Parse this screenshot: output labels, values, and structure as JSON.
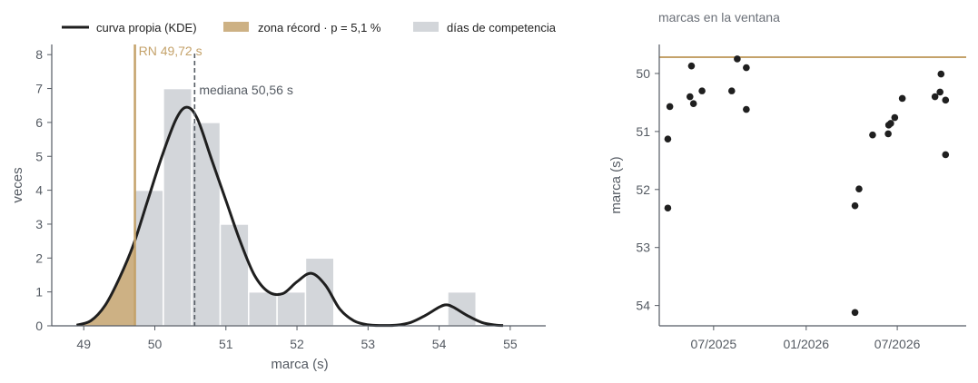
{
  "colors": {
    "kde": "#1f1f1f",
    "record": "#c4a26a",
    "record_fill": "#cdb184",
    "bars": "#d3d6da",
    "median": "#555b63",
    "points": "#1f1f1f",
    "axis": "#555b63"
  },
  "chart_data": [
    {
      "type": "bar",
      "subtype": "histogram-with-kde",
      "title": "",
      "xlabel": "marca (s)",
      "ylabel": "veces",
      "xlim": [
        48.55,
        55.5
      ],
      "ylim": [
        0,
        8.3
      ],
      "xticks": [
        49,
        50,
        51,
        52,
        53,
        54,
        55
      ],
      "yticks": [
        0,
        1,
        2,
        3,
        4,
        5,
        6,
        7,
        8
      ],
      "bin_edges": [
        49.72,
        50.12,
        50.52,
        50.92,
        51.32,
        51.72,
        52.12,
        52.52,
        52.92,
        53.32,
        53.72,
        54.12,
        54.52
      ],
      "bin_counts": [
        4,
        7,
        6,
        3,
        1,
        1,
        2,
        0,
        0,
        0,
        0,
        1
      ],
      "kde": {
        "name": "curva propia (KDE)",
        "x": [
          48.9,
          49.1,
          49.3,
          49.5,
          49.7,
          49.9,
          50.1,
          50.3,
          50.45,
          50.6,
          50.8,
          51.0,
          51.2,
          51.4,
          51.6,
          51.8,
          52.0,
          52.2,
          52.4,
          52.6,
          52.8,
          53.0,
          53.2,
          53.4,
          53.6,
          53.8,
          54.0,
          54.1,
          54.2,
          54.4,
          54.6,
          54.8,
          54.9
        ],
        "y": [
          0.02,
          0.15,
          0.6,
          1.4,
          2.4,
          3.7,
          5.0,
          6.1,
          6.45,
          6.1,
          4.9,
          3.7,
          2.5,
          1.5,
          1.0,
          0.95,
          1.3,
          1.55,
          1.2,
          0.5,
          0.15,
          0.03,
          0.01,
          0.02,
          0.1,
          0.3,
          0.55,
          0.62,
          0.55,
          0.3,
          0.1,
          0.02,
          0.01
        ]
      },
      "record": {
        "value": 49.72,
        "label": "RN 49,72 s"
      },
      "median": {
        "value": 50.56,
        "label": "mediana 50,56 s"
      },
      "zone_label": "zona récord · p = 5,1 %",
      "bars_label": "días de competencia",
      "legend_position": "top"
    },
    {
      "type": "scatter",
      "title": "marcas en la ventana",
      "xlabel": "",
      "ylabel": "marca (s)",
      "y_inverted": true,
      "ylim": [
        49.5,
        54.35
      ],
      "yticks": [
        50,
        51,
        52,
        53,
        54
      ],
      "xlim": [
        "2025-03-15",
        "2026-11-15"
      ],
      "xticks": [
        "2025-07-01",
        "2026-01-01",
        "2026-07-01"
      ],
      "xtick_labels": [
        "07/2025",
        "01/2026",
        "07/2026"
      ],
      "record_line": 49.72,
      "points": [
        {
          "x": "2025-04-01",
          "y": 51.13
        },
        {
          "x": "2025-04-01",
          "y": 52.32
        },
        {
          "x": "2025-04-05",
          "y": 50.57
        },
        {
          "x": "2025-05-15",
          "y": 50.4
        },
        {
          "x": "2025-05-18",
          "y": 49.87
        },
        {
          "x": "2025-05-22",
          "y": 50.52
        },
        {
          "x": "2025-06-08",
          "y": 50.3
        },
        {
          "x": "2025-08-06",
          "y": 50.3
        },
        {
          "x": "2025-08-17",
          "y": 49.75
        },
        {
          "x": "2025-09-04",
          "y": 49.9
        },
        {
          "x": "2025-09-04",
          "y": 50.62
        },
        {
          "x": "2026-04-08",
          "y": 52.28
        },
        {
          "x": "2026-04-08",
          "y": 54.12
        },
        {
          "x": "2026-04-16",
          "y": 51.99
        },
        {
          "x": "2026-05-13",
          "y": 51.06
        },
        {
          "x": "2026-06-13",
          "y": 51.04
        },
        {
          "x": "2026-06-14",
          "y": 50.89
        },
        {
          "x": "2026-06-18",
          "y": 50.86
        },
        {
          "x": "2026-06-26",
          "y": 50.76
        },
        {
          "x": "2026-07-11",
          "y": 50.43
        },
        {
          "x": "2026-09-14",
          "y": 50.4
        },
        {
          "x": "2026-09-24",
          "y": 50.32
        },
        {
          "x": "2026-09-26",
          "y": 50.01
        },
        {
          "x": "2026-10-05",
          "y": 50.46
        },
        {
          "x": "2026-10-05",
          "y": 51.4
        }
      ]
    }
  ]
}
